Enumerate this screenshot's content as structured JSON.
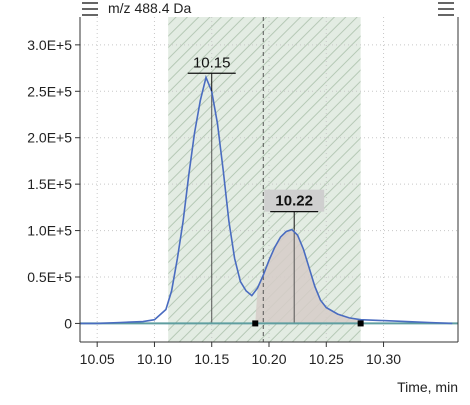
{
  "header": {
    "title": "m/z 488.4 Da",
    "left_handle_icon": "drag-handle-icon",
    "right_handle_icon": "drag-handle-icon"
  },
  "colors": {
    "trace": "#4a6cc0",
    "baseline": "#5f9ea0",
    "integration_band": "#c8d9c8",
    "peak_area": "#d6cdc8"
  },
  "chart_data": {
    "type": "line",
    "xlabel": "Time, min",
    "ylabel": "",
    "xlim": [
      10.035,
      10.365
    ],
    "ylim": [
      -20000,
      330000
    ],
    "x_ticks": [
      10.05,
      10.1,
      10.15,
      10.2,
      10.25,
      10.3
    ],
    "x_tick_labels": [
      "10.05",
      "10.10",
      "10.15",
      "10.20",
      "10.25",
      "10.30"
    ],
    "y_ticks": [
      0,
      50000,
      100000,
      150000,
      200000,
      250000,
      300000
    ],
    "y_tick_labels": [
      "0",
      "0.5E+5",
      "1.0E+5",
      "1.5E+5",
      "2.0E+5",
      "2.5E+5",
      "3.0E+5"
    ],
    "grid": true,
    "series": [
      {
        "x": [
          10.035,
          10.05,
          10.07,
          10.09,
          10.1,
          10.11,
          10.115,
          10.12,
          10.125,
          10.13,
          10.135,
          10.14,
          10.145,
          10.15,
          10.155,
          10.16,
          10.165,
          10.17,
          10.175,
          10.18,
          10.185,
          10.19,
          10.195,
          10.2,
          10.205,
          10.21,
          10.215,
          10.22,
          10.225,
          10.23,
          10.235,
          10.24,
          10.245,
          10.25,
          10.26,
          10.27,
          10.28,
          10.3,
          10.32,
          10.34,
          10.36
        ],
        "y": [
          0,
          0,
          1000,
          2000,
          4000,
          15000,
          35000,
          70000,
          110000,
          160000,
          205000,
          240000,
          265000,
          250000,
          215000,
          165000,
          110000,
          70000,
          45000,
          35000,
          30000,
          38000,
          52000,
          68000,
          82000,
          93000,
          99000,
          101000,
          95000,
          80000,
          60000,
          40000,
          25000,
          17000,
          10000,
          6000,
          4000,
          3000,
          2000,
          1000,
          0
        ]
      }
    ],
    "annotations": [
      {
        "label": "10.15",
        "x": 10.15,
        "y": 250000,
        "bold": false
      },
      {
        "label": "10.22",
        "x": 10.222,
        "y": 101000,
        "bold": true
      }
    ],
    "integration_range": [
      10.112,
      10.28
    ],
    "peak_window": [
      10.188,
      10.28
    ],
    "marker_x": 10.195
  }
}
